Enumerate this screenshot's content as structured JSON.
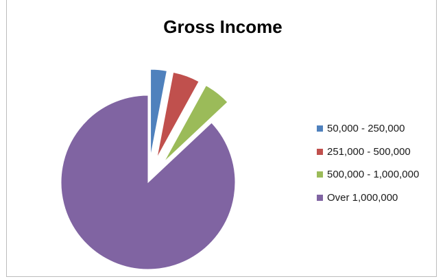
{
  "chart_data": {
    "type": "pie",
    "title": "Gross Income",
    "categories": [
      "50,000 - 250,000",
      "251,000 - 500,000",
      "500,000 - 1,000,000",
      "Over 1,000,000"
    ],
    "values": [
      3,
      5,
      5,
      87
    ],
    "colors": [
      "#4f81bd",
      "#c0504d",
      "#9bbb59",
      "#8064a2"
    ],
    "exploded": [
      true,
      true,
      true,
      false
    ],
    "start_angle_deg": 0,
    "direction": "clockwise",
    "legend": "right"
  }
}
